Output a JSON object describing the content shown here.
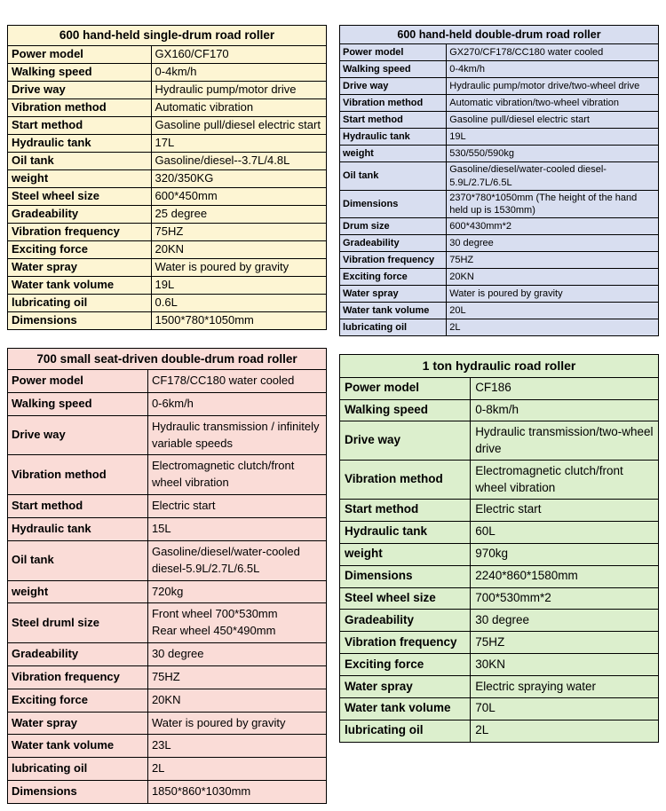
{
  "page": {
    "background": "#ffffff",
    "text_color": "#000000",
    "border_color": "#000000"
  },
  "tables": [
    {
      "title": "600 hand-held single-drum road roller",
      "bg": "#fdf5d3",
      "rows": [
        {
          "label": "Power model",
          "value": "GX160/CF170"
        },
        {
          "label": "Walking speed",
          "value": "0-4km/h"
        },
        {
          "label": "Drive way",
          "value": "Hydraulic pump/motor drive"
        },
        {
          "label": "Vibration method",
          "value": "Automatic vibration"
        },
        {
          "label": "Start method",
          "value": "Gasoline pull/diesel electric start"
        },
        {
          "label": "Hydraulic tank",
          "value": "17L"
        },
        {
          "label": "Oil tank",
          "value": "Gasoline/diesel--3.7L/4.8L"
        },
        {
          "label": "weight",
          "value": "320/350KG"
        },
        {
          "label": "Steel wheel size",
          "value": "600*450mm"
        },
        {
          "label": "Gradeability",
          "value": "25 degree"
        },
        {
          "label": "Vibration frequency",
          "value": "75HZ"
        },
        {
          "label": "Exciting force",
          "value": "20KN"
        },
        {
          "label": "Water spray",
          "value": "Water is poured by gravity"
        },
        {
          "label": "Water tank volume",
          "value": "19L"
        },
        {
          "label": "lubricating oil",
          "value": "0.6L"
        },
        {
          "label": "Dimensions",
          "value": "1500*780*1050mm"
        }
      ]
    },
    {
      "title": "600 hand-held double-drum road roller",
      "bg": "#d8def0",
      "rows": [
        {
          "label": "Power model",
          "value": "GX270/CF178/CC180 water cooled"
        },
        {
          "label": "Walking speed",
          "value": "0-4km/h"
        },
        {
          "label": "Drive way",
          "value": "Hydraulic pump/motor drive/two-wheel drive"
        },
        {
          "label": "Vibration method",
          "value": "Automatic vibration/two-wheel vibration"
        },
        {
          "label": "Start method",
          "value": "Gasoline pull/diesel electric start"
        },
        {
          "label": "Hydraulic tank",
          "value": "19L"
        },
        {
          "label": "weight",
          "value": "530/550/590kg"
        },
        {
          "label": "Oil tank",
          "value": "Gasoline/diesel/water-cooled diesel-5.9L/2.7L/6.5L"
        },
        {
          "label": "Dimensions",
          "value": "2370*780*1050mm (The height of the hand held up is 1530mm)"
        },
        {
          "label": "Drum size",
          "value": "600*430mm*2"
        },
        {
          "label": "Gradeability",
          "value": "30 degree"
        },
        {
          "label": "Vibration frequency",
          "value": "75HZ"
        },
        {
          "label": "Exciting force",
          "value": "20KN"
        },
        {
          "label": "Water spray",
          "value": "Water is poured by gravity"
        },
        {
          "label": "Water tank volume",
          "value": "20L"
        },
        {
          "label": "lubricating oil",
          "value": "2L"
        }
      ]
    },
    {
      "title": "700 small seat-driven double-drum road roller",
      "bg": "#fadcd7",
      "rows": [
        {
          "label": "Power model",
          "value": "CF178/CC180 water cooled"
        },
        {
          "label": "Walking speed",
          "value": "0-6km/h"
        },
        {
          "label": "Drive way",
          "value": "Hydraulic transmission / infinitely variable speeds"
        },
        {
          "label": "Vibration method",
          "value": "Electromagnetic clutch/front wheel vibration"
        },
        {
          "label": "Start method",
          "value": "Electric start"
        },
        {
          "label": "Hydraulic tank",
          "value": "15L"
        },
        {
          "label": "Oil tank",
          "value": "Gasoline/diesel/water-cooled diesel-5.9L/2.7L/6.5L"
        },
        {
          "label": "weight",
          "value": "720kg"
        },
        {
          "label": "Steel druml size",
          "value": "Front wheel 700*530mm\nRear wheel 450*490mm"
        },
        {
          "label": "Gradeability",
          "value": "30 degree"
        },
        {
          "label": "Vibration frequency",
          "value": "75HZ"
        },
        {
          "label": "Exciting force",
          "value": "20KN"
        },
        {
          "label": "Water spray",
          "value": "Water is poured by gravity"
        },
        {
          "label": "Water tank volume",
          "value": "23L"
        },
        {
          "label": "lubricating oil",
          "value": "2L"
        },
        {
          "label": "Dimensions",
          "value": "1850*860*1030mm"
        }
      ]
    },
    {
      "title": "1 ton hydraulic road roller",
      "bg": "#dcefcd",
      "rows": [
        {
          "label": "Power model",
          "value": "CF186"
        },
        {
          "label": "Walking speed",
          "value": "0-8km/h"
        },
        {
          "label": "Drive way",
          "value": "Hydraulic transmission/two-wheel drive"
        },
        {
          "label": "Vibration method",
          "value": "Electromagnetic clutch/front wheel vibration"
        },
        {
          "label": "Start method",
          "value": "Electric start"
        },
        {
          "label": "Hydraulic tank",
          "value": "60L"
        },
        {
          "label": "weight",
          "value": "970kg"
        },
        {
          "label": "Dimensions",
          "value": "2240*860*1580mm"
        },
        {
          "label": "Steel wheel size",
          "value": "700*530mm*2"
        },
        {
          "label": "Gradeability",
          "value": "30 degree"
        },
        {
          "label": "Vibration frequency",
          "value": "75HZ"
        },
        {
          "label": "Exciting force",
          "value": "30KN"
        },
        {
          "label": "Water spray",
          "value": "Electric spraying water"
        },
        {
          "label": "Water tank volume",
          "value": "70L"
        },
        {
          "label": "lubricating oil",
          "value": "2L"
        }
      ]
    }
  ]
}
